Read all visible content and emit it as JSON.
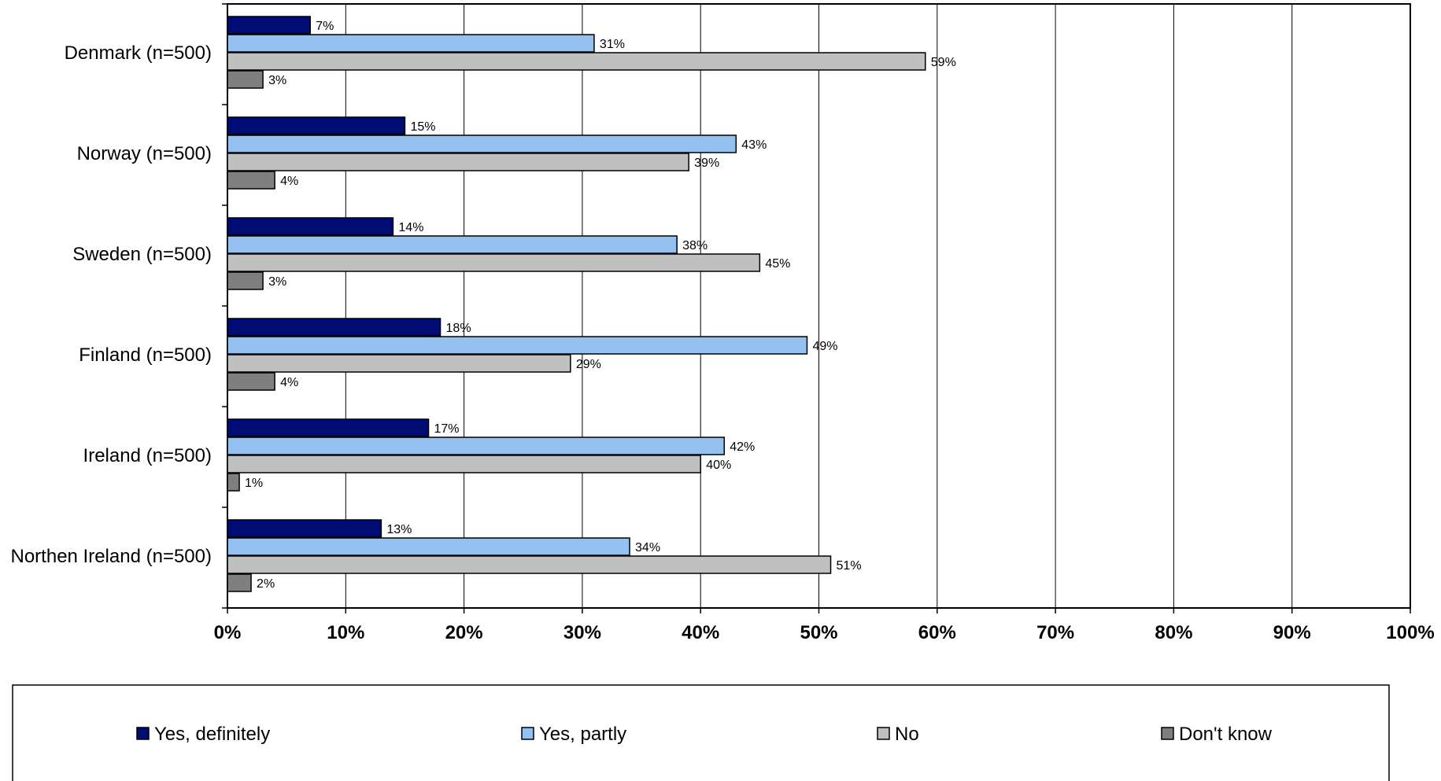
{
  "chart_data": {
    "type": "bar",
    "orientation": "horizontal",
    "categories": [
      "Denmark (n=500)",
      "Norway (n=500)",
      "Sweden (n=500)",
      "Finland (n=500)",
      "Ireland (n=500)",
      "Northen Ireland (n=500)"
    ],
    "series": [
      {
        "name": "Yes, definitely",
        "color": "#000c73",
        "values": [
          7,
          15,
          14,
          18,
          17,
          13
        ],
        "labels": [
          "7%",
          "15%",
          "14%",
          "18%",
          "17%",
          "13%"
        ]
      },
      {
        "name": "Yes, partly",
        "color": "#94c1f0",
        "values": [
          31,
          43,
          38,
          49,
          42,
          34
        ],
        "labels": [
          "31%",
          "43%",
          "38%",
          "49%",
          "42%",
          "34%"
        ]
      },
      {
        "name": "No",
        "color": "#c0c0c0",
        "values": [
          59,
          39,
          45,
          29,
          40,
          51
        ],
        "labels": [
          "59%",
          "39%",
          "45%",
          "29%",
          "40%",
          "51%"
        ]
      },
      {
        "name": "Don't know",
        "color": "#7f7f7f",
        "values": [
          3,
          4,
          3,
          4,
          1,
          2
        ],
        "labels": [
          "3%",
          "4%",
          "3%",
          "4%",
          "1%",
          "2%"
        ]
      }
    ],
    "x_ticks": [
      "0%",
      "10%",
      "20%",
      "30%",
      "40%",
      "50%",
      "60%",
      "70%",
      "80%",
      "90%",
      "100%"
    ],
    "xlim": [
      0,
      100
    ],
    "grid": "vertical",
    "legend_position": "bottom",
    "title": "",
    "xlabel": "",
    "ylabel": ""
  }
}
